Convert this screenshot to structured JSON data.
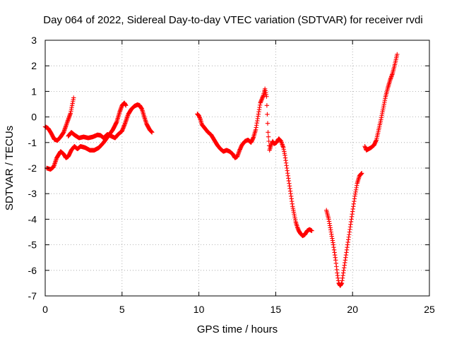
{
  "chart_data": {
    "type": "scatter",
    "title": "Day 064 of 2022, Sidereal Day-to-day VTEC variation (SDTVAR) for receiver rvdi",
    "xlabel": "GPS time / hours",
    "ylabel": "SDTVAR / TECUs",
    "xlim": [
      0,
      25
    ],
    "ylim": [
      -7,
      3
    ],
    "xticks": [
      0,
      5,
      10,
      15,
      20,
      25
    ],
    "yticks": [
      3,
      2,
      1,
      0,
      -1,
      -2,
      -3,
      -4,
      -5,
      -6,
      -7
    ],
    "grid": true,
    "marker": "plus",
    "color": "#ff0000",
    "segments": [
      [
        [
          0.0,
          -0.38
        ],
        [
          0.2,
          -0.45
        ],
        [
          0.4,
          -0.65
        ],
        [
          0.6,
          -0.88
        ],
        [
          0.8,
          -0.92
        ],
        [
          1.0,
          -0.78
        ],
        [
          1.2,
          -0.6
        ],
        [
          1.35,
          -0.35
        ],
        [
          1.5,
          -0.1
        ],
        [
          1.65,
          0.15
        ],
        [
          1.75,
          0.45
        ],
        [
          1.85,
          0.75
        ]
      ],
      [
        [
          0.1,
          -2.0
        ],
        [
          0.35,
          -2.05
        ],
        [
          0.55,
          -1.95
        ],
        [
          0.75,
          -1.6
        ],
        [
          1.0,
          -1.35
        ],
        [
          1.2,
          -1.45
        ],
        [
          1.35,
          -1.6
        ],
        [
          1.5,
          -1.55
        ],
        [
          1.7,
          -1.3
        ],
        [
          1.9,
          -1.15
        ],
        [
          2.1,
          -1.25
        ],
        [
          2.3,
          -1.15
        ],
        [
          2.6,
          -1.2
        ],
        [
          2.9,
          -1.3
        ],
        [
          3.2,
          -1.3
        ],
        [
          3.5,
          -1.2
        ],
        [
          3.8,
          -1.0
        ],
        [
          4.1,
          -0.75
        ],
        [
          4.4,
          -0.5
        ],
        [
          4.65,
          -0.2
        ],
        [
          4.85,
          0.2
        ],
        [
          5.0,
          0.45
        ],
        [
          5.15,
          0.55
        ],
        [
          5.25,
          0.45
        ]
      ],
      [
        [
          1.5,
          -0.75
        ],
        [
          1.7,
          -0.6
        ],
        [
          1.9,
          -0.7
        ],
        [
          2.2,
          -0.82
        ],
        [
          2.5,
          -0.78
        ],
        [
          2.8,
          -0.82
        ],
        [
          3.1,
          -0.78
        ],
        [
          3.4,
          -0.7
        ],
        [
          3.6,
          -0.72
        ],
        [
          3.8,
          -0.82
        ],
        [
          4.05,
          -0.68
        ],
        [
          4.3,
          -0.75
        ],
        [
          4.55,
          -0.82
        ],
        [
          4.75,
          -0.68
        ],
        [
          5.0,
          -0.55
        ],
        [
          5.2,
          -0.25
        ],
        [
          5.4,
          0.1
        ],
        [
          5.6,
          0.3
        ],
        [
          5.8,
          0.42
        ],
        [
          6.0,
          0.48
        ],
        [
          6.15,
          0.45
        ],
        [
          6.3,
          0.3
        ],
        [
          6.45,
          0.0
        ],
        [
          6.6,
          -0.28
        ],
        [
          6.8,
          -0.5
        ],
        [
          6.95,
          -0.6
        ]
      ],
      [
        [
          9.9,
          0.12
        ],
        [
          10.0,
          0.05
        ],
        [
          10.1,
          -0.1
        ],
        [
          10.2,
          -0.3
        ],
        [
          10.4,
          -0.45
        ],
        [
          10.6,
          -0.6
        ],
        [
          10.8,
          -0.7
        ],
        [
          11.0,
          -0.9
        ],
        [
          11.2,
          -1.1
        ],
        [
          11.4,
          -1.25
        ],
        [
          11.6,
          -1.35
        ],
        [
          11.8,
          -1.3
        ],
        [
          12.0,
          -1.35
        ],
        [
          12.2,
          -1.45
        ],
        [
          12.35,
          -1.6
        ],
        [
          12.5,
          -1.55
        ],
        [
          12.65,
          -1.3
        ],
        [
          12.8,
          -1.1
        ],
        [
          13.0,
          -0.95
        ],
        [
          13.2,
          -0.9
        ],
        [
          13.4,
          -1.0
        ],
        [
          13.55,
          -0.8
        ],
        [
          13.7,
          -0.5
        ],
        [
          13.8,
          -0.15
        ],
        [
          13.9,
          0.2
        ],
        [
          14.0,
          0.55
        ],
        [
          14.1,
          0.7
        ],
        [
          14.2,
          0.85
        ],
        [
          14.3,
          1.1
        ],
        [
          14.4,
          0.8
        ],
        [
          14.5,
          -0.6
        ],
        [
          14.6,
          -1.3
        ],
        [
          14.7,
          -1.1
        ],
        [
          14.8,
          -0.95
        ],
        [
          14.9,
          -1.05
        ],
        [
          15.05,
          -1.0
        ],
        [
          15.2,
          -0.85
        ],
        [
          15.35,
          -0.95
        ],
        [
          15.5,
          -1.2
        ],
        [
          15.6,
          -1.5
        ],
        [
          15.7,
          -1.9
        ],
        [
          15.8,
          -2.3
        ],
        [
          15.9,
          -2.7
        ],
        [
          16.0,
          -3.1
        ],
        [
          16.1,
          -3.5
        ],
        [
          16.2,
          -3.8
        ],
        [
          16.3,
          -4.1
        ],
        [
          16.4,
          -4.3
        ],
        [
          16.5,
          -4.45
        ],
        [
          16.6,
          -4.55
        ],
        [
          16.75,
          -4.65
        ],
        [
          16.9,
          -4.6
        ],
        [
          17.05,
          -4.45
        ],
        [
          17.2,
          -4.4
        ],
        [
          17.35,
          -4.45
        ]
      ],
      [
        [
          18.3,
          -3.65
        ],
        [
          18.45,
          -4.0
        ],
        [
          18.6,
          -4.5
        ],
        [
          18.75,
          -5.0
        ],
        [
          18.9,
          -5.6
        ],
        [
          19.0,
          -6.1
        ],
        [
          19.1,
          -6.5
        ],
        [
          19.2,
          -6.6
        ],
        [
          19.3,
          -6.5
        ],
        [
          19.4,
          -6.1
        ],
        [
          19.55,
          -5.5
        ],
        [
          19.7,
          -4.9
        ],
        [
          19.85,
          -4.3
        ],
        [
          20.0,
          -3.7
        ],
        [
          20.15,
          -3.1
        ],
        [
          20.3,
          -2.6
        ],
        [
          20.45,
          -2.3
        ],
        [
          20.6,
          -2.2
        ]
      ],
      [
        [
          20.8,
          -1.15
        ],
        [
          20.9,
          -1.3
        ],
        [
          21.2,
          -1.2
        ],
        [
          21.4,
          -1.1
        ],
        [
          21.55,
          -0.9
        ],
        [
          21.7,
          -0.5
        ],
        [
          21.85,
          -0.1
        ],
        [
          22.0,
          0.35
        ],
        [
          22.15,
          0.8
        ],
        [
          22.3,
          1.15
        ],
        [
          22.45,
          1.45
        ],
        [
          22.6,
          1.7
        ],
        [
          22.75,
          2.05
        ],
        [
          22.9,
          2.45
        ]
      ]
    ]
  }
}
